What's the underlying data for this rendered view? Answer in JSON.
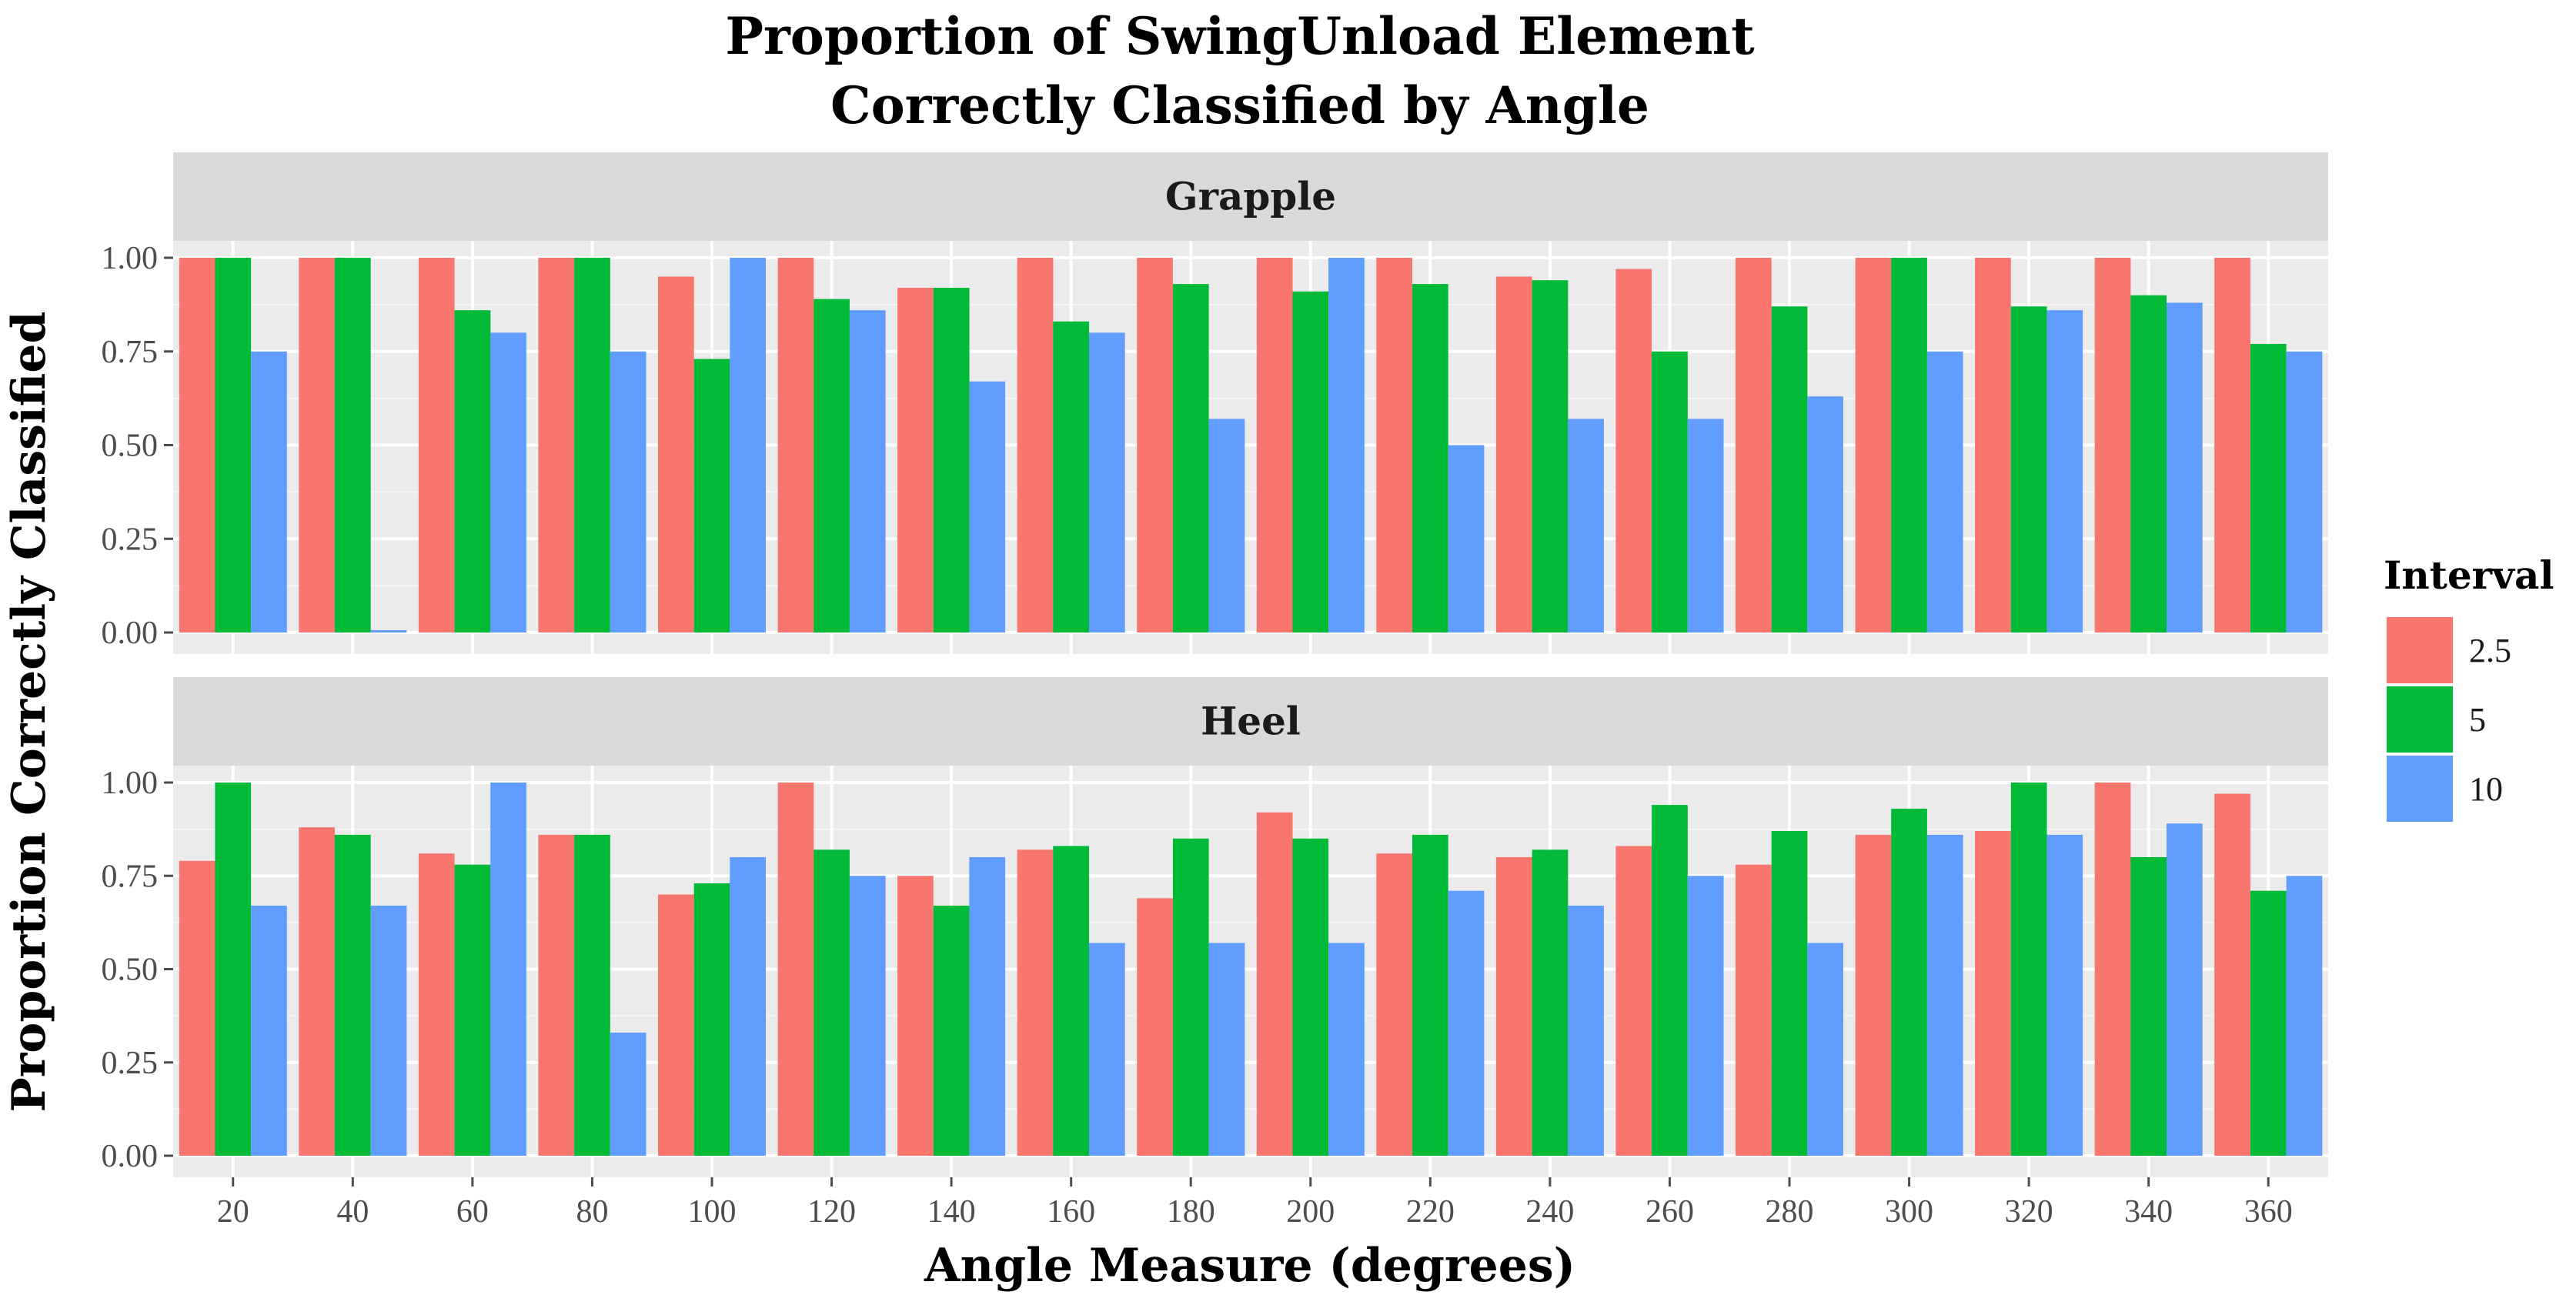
{
  "chart_data": {
    "type": "bar",
    "title_lines": [
      "Proportion of SwingUnload Element",
      "Correctly Classified by Angle"
    ],
    "xlabel": "Angle Measure (degrees)",
    "ylabel": "Proportion  Correctly  Classified",
    "ylim": [
      0,
      1.05
    ],
    "yticks": [
      0,
      0.25,
      0.5,
      0.75,
      1.0
    ],
    "ytick_labels": [
      "0.00",
      "0.25",
      "0.50",
      "0.75",
      "1.00"
    ],
    "categories": [
      "20",
      "40",
      "60",
      "80",
      "100",
      "120",
      "140",
      "160",
      "180",
      "200",
      "220",
      "240",
      "260",
      "280",
      "300",
      "320",
      "340",
      "360"
    ],
    "legend": {
      "title": "Interval",
      "entries": [
        {
          "name": "2.5",
          "color": "#F8766D"
        },
        {
          "name": "5",
          "color": "#00BA38"
        },
        {
          "name": "10",
          "color": "#619CFF"
        }
      ]
    },
    "panels": [
      {
        "name": "Grapple",
        "series": [
          {
            "name": "2.5",
            "values": [
              1.0,
              1.0,
              1.0,
              1.0,
              0.95,
              1.0,
              0.92,
              1.0,
              1.0,
              1.0,
              1.0,
              0.95,
              0.97,
              1.0,
              1.0,
              1.0,
              1.0,
              1.0
            ]
          },
          {
            "name": "5",
            "values": [
              1.0,
              1.0,
              0.86,
              1.0,
              0.73,
              0.89,
              0.92,
              0.83,
              0.93,
              0.91,
              0.93,
              0.94,
              0.75,
              0.87,
              1.0,
              0.87,
              0.9,
              0.77
            ]
          },
          {
            "name": "10",
            "values": [
              0.75,
              0.0,
              0.8,
              0.75,
              1.0,
              0.86,
              0.67,
              0.8,
              0.57,
              1.0,
              0.5,
              0.57,
              0.57,
              0.63,
              0.75,
              0.86,
              0.88,
              0.75
            ]
          }
        ]
      },
      {
        "name": "Heel",
        "series": [
          {
            "name": "2.5",
            "values": [
              0.79,
              0.88,
              0.81,
              0.86,
              0.7,
              1.0,
              0.75,
              0.82,
              0.69,
              0.92,
              0.81,
              0.8,
              0.83,
              0.78,
              0.86,
              0.87,
              1.0,
              0.97
            ]
          },
          {
            "name": "5",
            "values": [
              1.0,
              0.86,
              0.78,
              0.86,
              0.73,
              0.82,
              0.67,
              0.83,
              0.85,
              0.85,
              0.86,
              0.82,
              0.94,
              0.87,
              0.93,
              1.0,
              0.8,
              0.71
            ]
          },
          {
            "name": "10",
            "values": [
              0.67,
              0.67,
              1.0,
              0.33,
              0.8,
              0.75,
              0.8,
              0.57,
              0.57,
              0.57,
              0.71,
              0.67,
              0.75,
              0.57,
              0.86,
              0.86,
              0.89,
              0.75
            ]
          }
        ]
      }
    ]
  }
}
